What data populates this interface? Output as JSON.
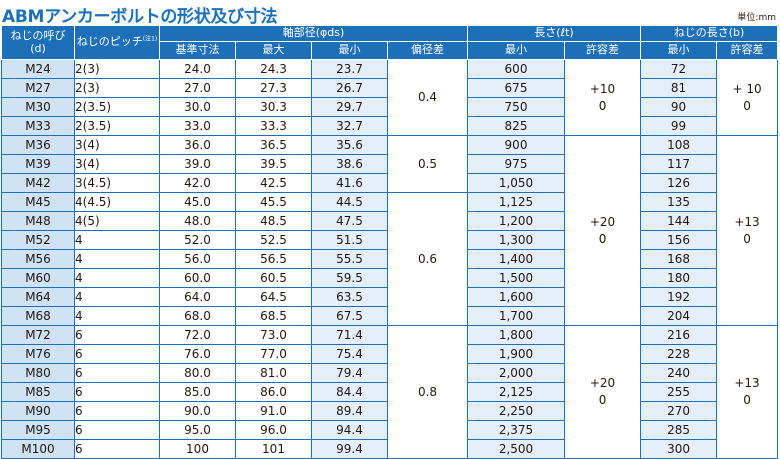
{
  "title": "ABMアンカーボルトの形状及び寸法",
  "unit_label": "単位:mm",
  "headers": {
    "size_line1": "ねじの呼び",
    "size_line2": "(d)",
    "pitch": "ねじのピッチ",
    "pitch_note": "(注1)",
    "shaft_dia": "軸部径(φds)",
    "length": "長さ(ℓt)",
    "thread_length": "ねじの長さ(b)",
    "nominal": "基準寸法",
    "max": "最大",
    "min": "最小",
    "eccentricity": "偏径差",
    "length_min": "最小",
    "length_tol": "許容差",
    "thread_min": "最小",
    "thread_tol": "許容差"
  },
  "rows": [
    {
      "size": "M24",
      "pitch": "2(3)",
      "nominal": "24.0",
      "max": "24.3",
      "min": "23.7",
      "length": "600",
      "thread": "72"
    },
    {
      "size": "M27",
      "pitch": "2(3)",
      "nominal": "27.0",
      "max": "27.3",
      "min": "26.7",
      "length": "675",
      "thread": "81"
    },
    {
      "size": "M30",
      "pitch": "2(3.5)",
      "nominal": "30.0",
      "max": "30.3",
      "min": "29.7",
      "length": "750",
      "thread": "90"
    },
    {
      "size": "M33",
      "pitch": "2(3.5)",
      "nominal": "33.0",
      "max": "33.3",
      "min": "32.7",
      "length": "825",
      "thread": "99"
    },
    {
      "size": "M36",
      "pitch": "3(4)",
      "nominal": "36.0",
      "max": "36.5",
      "min": "35.6",
      "length": "900",
      "thread": "108"
    },
    {
      "size": "M39",
      "pitch": "3(4)",
      "nominal": "39.0",
      "max": "39.5",
      "min": "38.6",
      "length": "975",
      "thread": "117"
    },
    {
      "size": "M42",
      "pitch": "3(4.5)",
      "nominal": "42.0",
      "max": "42.5",
      "min": "41.6",
      "length": "1,050",
      "thread": "126"
    },
    {
      "size": "M45",
      "pitch": "4(4.5)",
      "nominal": "45.0",
      "max": "45.5",
      "min": "44.5",
      "length": "1,125",
      "thread": "135"
    },
    {
      "size": "M48",
      "pitch": "4(5)",
      "nominal": "48.0",
      "max": "48.5",
      "min": "47.5",
      "length": "1,200",
      "thread": "144"
    },
    {
      "size": "M52",
      "pitch": "4",
      "nominal": "52.0",
      "max": "52.5",
      "min": "51.5",
      "length": "1,300",
      "thread": "156"
    },
    {
      "size": "M56",
      "pitch": "4",
      "nominal": "56.0",
      "max": "56.5",
      "min": "55.5",
      "length": "1,400",
      "thread": "168"
    },
    {
      "size": "M60",
      "pitch": "4",
      "nominal": "60.0",
      "max": "60.5",
      "min": "59.5",
      "length": "1,500",
      "thread": "180"
    },
    {
      "size": "M64",
      "pitch": "4",
      "nominal": "64.0",
      "max": "64.5",
      "min": "63.5",
      "length": "1,600",
      "thread": "192"
    },
    {
      "size": "M68",
      "pitch": "4",
      "nominal": "68.0",
      "max": "68.5",
      "min": "67.5",
      "length": "1,700",
      "thread": "204"
    },
    {
      "size": "M72",
      "pitch": "6",
      "nominal": "72.0",
      "max": "73.0",
      "min": "71.4",
      "length": "1,800",
      "thread": "216"
    },
    {
      "size": "M76",
      "pitch": "6",
      "nominal": "76.0",
      "max": "77.0",
      "min": "75.4",
      "length": "1,900",
      "thread": "228"
    },
    {
      "size": "M80",
      "pitch": "6",
      "nominal": "80.0",
      "max": "81.0",
      "min": "79.4",
      "length": "2,000",
      "thread": "240"
    },
    {
      "size": "M85",
      "pitch": "6",
      "nominal": "85.0",
      "max": "86.0",
      "min": "84.4",
      "length": "2,125",
      "thread": "255"
    },
    {
      "size": "M90",
      "pitch": "6",
      "nominal": "90.0",
      "max": "91.0",
      "min": "89.4",
      "length": "2,250",
      "thread": "270"
    },
    {
      "size": "M95",
      "pitch": "6",
      "nominal": "95.0",
      "max": "96.0",
      "min": "94.4",
      "length": "2,375",
      "thread": "285"
    },
    {
      "size": "M100",
      "pitch": "6",
      "nominal": "100",
      "max": "101",
      "min": "99.4",
      "length": "2,500",
      "thread": "300"
    }
  ],
  "eccentricity_groups": [
    {
      "rows": 4,
      "value": "0.4"
    },
    {
      "rows": 3,
      "value": "0.5"
    },
    {
      "rows": 7,
      "value": "0.6"
    },
    {
      "rows": 7,
      "value": "0.8"
    }
  ],
  "length_tol_groups": [
    {
      "rows": 4,
      "lines": [
        "+10",
        "0"
      ]
    },
    {
      "rows": 10,
      "lines": [
        "+20",
        "0"
      ]
    },
    {
      "rows": 7,
      "lines": [
        "+20",
        "0"
      ]
    }
  ],
  "thread_tol_groups": [
    {
      "rows": 4,
      "lines": [
        "+ 10",
        "0"
      ]
    },
    {
      "rows": 10,
      "lines": [
        "+13",
        "0"
      ]
    },
    {
      "rows": 7,
      "lines": [
        "+13",
        "0"
      ]
    }
  ],
  "colors": {
    "header_bg": "#1d6fb8",
    "title": "#1d6fb8",
    "size_cell_bg": "#cfe3f5",
    "alt_cell_bg": "#e4eff9",
    "border": "#1d6fb8"
  }
}
